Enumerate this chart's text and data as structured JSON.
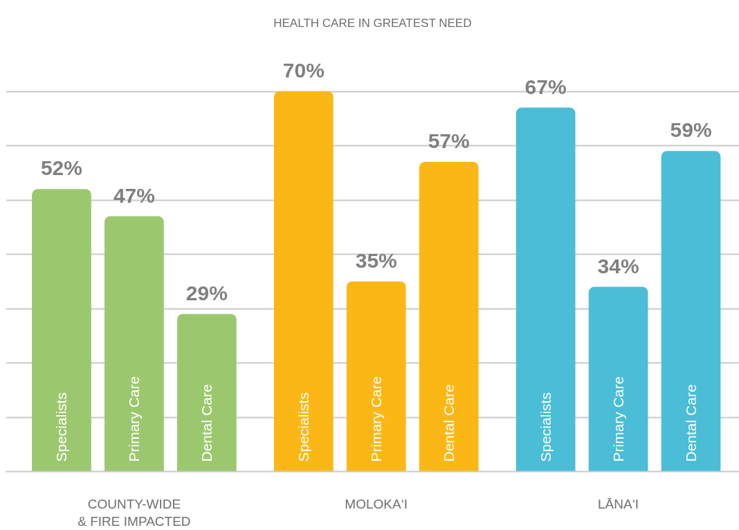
{
  "chart_data": {
    "type": "bar",
    "title": "HEALTH CARE IN GREATEST NEED",
    "categories": [
      "COUNTY-WIDE\n& FIRE IMPACTED",
      "MOLOKA‘I",
      "LĀNA‘I"
    ],
    "series": [
      {
        "name": "Specialists",
        "colors": [
          "#9bc86f",
          "#fbb716",
          "#4bbdd6"
        ],
        "values": [
          52,
          70,
          67
        ],
        "value_labels": [
          "52%",
          "70%",
          "67%"
        ]
      },
      {
        "name": "Primary Care",
        "colors": [
          "#9bc86f",
          "#fbb716",
          "#4bbdd6"
        ],
        "values": [
          47,
          35,
          34
        ],
        "value_labels": [
          "47%",
          "35%",
          "34%"
        ]
      },
      {
        "name": "Dental Care",
        "colors": [
          "#9bc86f",
          "#fbb716",
          "#4bbdd6"
        ],
        "values": [
          29,
          57,
          59
        ],
        "value_labels": [
          "29%",
          "57%",
          "59%"
        ]
      }
    ],
    "yticks": [
      {
        "value": 10,
        "label": null
      },
      {
        "value": 20,
        "label": null
      },
      {
        "value": 30,
        "label": null
      },
      {
        "value": 40,
        "label": null
      },
      {
        "value": 50,
        "label": null
      },
      {
        "value": 60,
        "label": null
      },
      {
        "value": 70,
        "label": null
      }
    ],
    "grid": "y",
    "tick_labels": "x"
  }
}
